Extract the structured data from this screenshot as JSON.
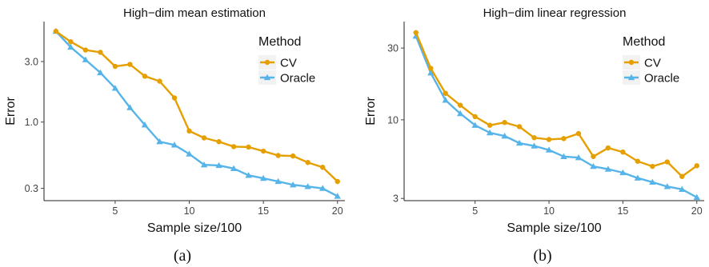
{
  "chart_data": [
    {
      "type": "line",
      "title": "High−dim mean estimation",
      "xlabel": "Sample size/100",
      "ylabel": "Error",
      "yscale": "log",
      "xlim": [
        0.2,
        20.5
      ],
      "ylim": [
        0.24,
        6.2
      ],
      "xticks": [
        5,
        10,
        15,
        20
      ],
      "xtick_labels": [
        "5",
        "10",
        "15",
        "20"
      ],
      "yticks": [
        0.3,
        1.0,
        3.0
      ],
      "ytick_labels": [
        "0.3",
        "1.0",
        "3.0"
      ],
      "grid": false,
      "legend": {
        "title": "Method",
        "position": "top-right"
      },
      "x": [
        1,
        2,
        3,
        4,
        5,
        6,
        7,
        8,
        9,
        10,
        11,
        12,
        13,
        14,
        15,
        16,
        17,
        18,
        19,
        20
      ],
      "series": [
        {
          "name": "CV",
          "color": "#E69F00",
          "marker": "circle",
          "values": [
            5.2,
            4.3,
            3.7,
            3.55,
            2.75,
            2.85,
            2.3,
            2.1,
            1.55,
            0.85,
            0.75,
            0.7,
            0.64,
            0.635,
            0.59,
            0.545,
            0.54,
            0.48,
            0.44,
            0.34
          ]
        },
        {
          "name": "Oracle",
          "color": "#56B4E9",
          "marker": "triangle",
          "values": [
            5.2,
            3.9,
            3.1,
            2.45,
            1.85,
            1.3,
            0.95,
            0.7,
            0.66,
            0.56,
            0.46,
            0.455,
            0.43,
            0.38,
            0.36,
            0.34,
            0.32,
            0.31,
            0.3,
            0.26
          ]
        }
      ],
      "caption": "(a)"
    },
    {
      "type": "line",
      "title": "High−dim linear regression",
      "xlabel": "Sample size/100",
      "ylabel": "Error",
      "yscale": "log",
      "xlim": [
        0.2,
        20.5
      ],
      "ylim": [
        2.9,
        45
      ],
      "xticks": [
        5,
        10,
        15,
        20
      ],
      "xtick_labels": [
        "5",
        "10",
        "15",
        "20"
      ],
      "yticks": [
        3,
        10,
        30
      ],
      "ytick_labels": [
        "3",
        "10",
        "30"
      ],
      "grid": false,
      "legend": {
        "title": "Method",
        "position": "top-right"
      },
      "x": [
        1,
        2,
        3,
        4,
        5,
        6,
        7,
        8,
        9,
        10,
        11,
        12,
        13,
        14,
        15,
        16,
        17,
        18,
        19,
        20
      ],
      "series": [
        {
          "name": "CV",
          "color": "#E69F00",
          "marker": "circle",
          "values": [
            38,
            22,
            15,
            12.5,
            10.5,
            9.2,
            9.6,
            9.0,
            7.6,
            7.4,
            7.5,
            8.1,
            5.7,
            6.5,
            6.1,
            5.3,
            4.9,
            5.25,
            4.2,
            4.95
          ]
        },
        {
          "name": "Oracle",
          "color": "#56B4E9",
          "marker": "triangle",
          "values": [
            36,
            20.5,
            13.5,
            11,
            9.2,
            8.2,
            7.8,
            7.0,
            6.7,
            6.3,
            5.7,
            5.6,
            4.9,
            4.7,
            4.45,
            4.1,
            3.85,
            3.6,
            3.45,
            3.05
          ]
        }
      ],
      "caption": "(b)"
    }
  ]
}
